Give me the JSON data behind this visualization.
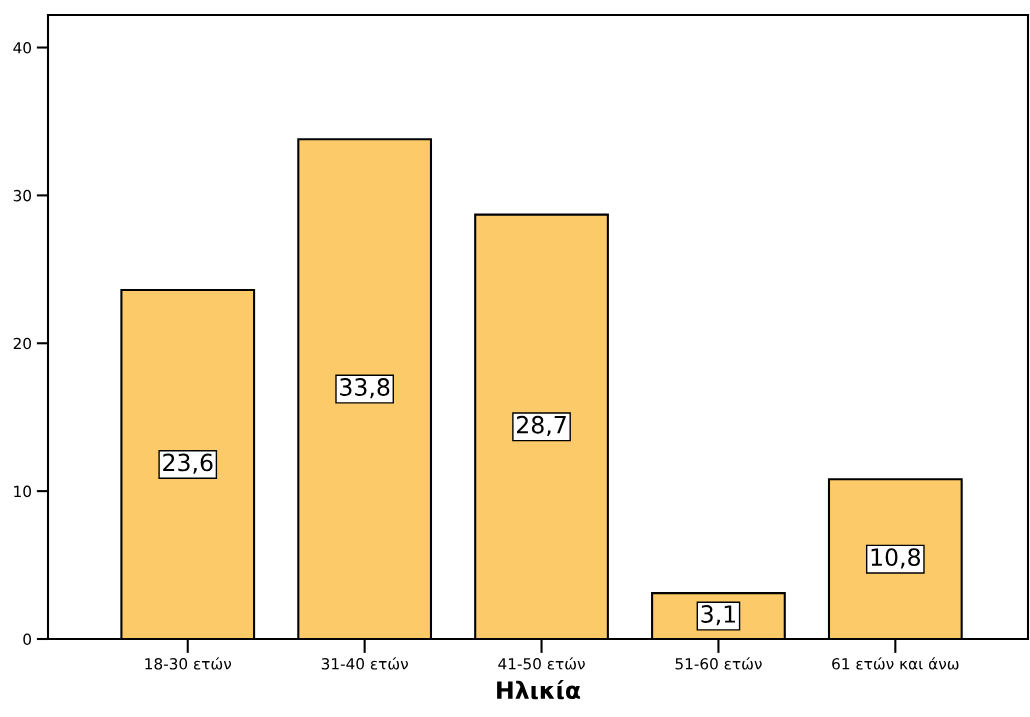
{
  "chart_data": {
    "type": "bar",
    "xlabel": "Ηλικία",
    "categories": [
      "18-30 ετών",
      "31-40 ετών",
      "41-50 ετών",
      "51-60 ετών",
      "61 ετών και άνω"
    ],
    "values": [
      23.6,
      33.8,
      28.7,
      3.1,
      10.8
    ],
    "value_labels": [
      "23,6",
      "33,8",
      "28,7",
      "3,1",
      "10,8"
    ],
    "color": "#fdca69",
    "ylim": [
      0,
      42.2
    ],
    "yticks": [
      0,
      10,
      20,
      30,
      40
    ],
    "grid": false
  }
}
